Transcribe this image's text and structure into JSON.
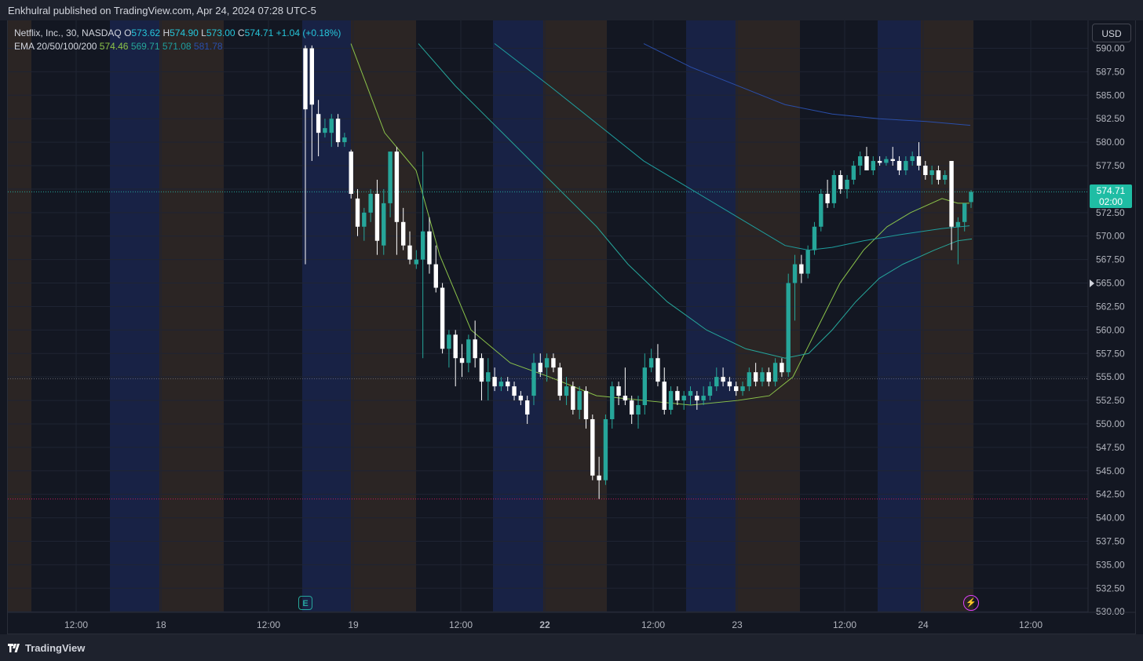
{
  "header": {
    "published_text": "Enkhulral published on TradingView.com, Apr 24, 2024 07:28 UTC-5"
  },
  "legend": {
    "symbol": "Netflix, Inc., 30, NASDAQ",
    "ohlc": {
      "o_label": "O",
      "o": "573.62",
      "h_label": "H",
      "h": "574.90",
      "l_label": "L",
      "l": "573.00",
      "c_label": "C",
      "c": "574.71",
      "change": "+1.04 (+0.18%)"
    },
    "ema_label": "EMA 20/50/100/200",
    "ema_values": [
      "574.46",
      "569.71",
      "571.08",
      "581.78"
    ]
  },
  "currency_button": "USD",
  "last_price": {
    "price": "574.71",
    "countdown": "02:00"
  },
  "footer": {
    "brand": "TradingView"
  },
  "icons": {
    "earnings": "E",
    "bolt": "⚡"
  },
  "colors": {
    "up": "#26a69a",
    "down": "#ffffff",
    "ema20": "#8bc34a",
    "ema50": "#26a69a",
    "ema100": "#1e9e9e",
    "ema200": "#2a4eaa",
    "asia": "#2b2524",
    "overnight": "#182245"
  },
  "chart_data": {
    "type": "candlestick",
    "symbol": "NFLX",
    "interval": "30",
    "y_ticks": [
      590,
      587.5,
      585,
      582.5,
      580,
      577.5,
      575,
      572.5,
      570,
      567.5,
      565,
      562.5,
      560,
      557.5,
      555,
      552.5,
      550,
      547.5,
      545,
      542.5,
      540,
      537.5,
      535,
      532.5,
      530
    ],
    "ylim": [
      530,
      590.3
    ],
    "x_ticks": [
      "12:00",
      "18",
      "12:00",
      "19",
      "12:00",
      "22",
      "12:00",
      "23",
      "12:00",
      "24",
      "12:00"
    ],
    "horizontal_lines": [
      574.71,
      554.8,
      542.0
    ],
    "candles": [
      {
        "o": 590.0,
        "h": 590.3,
        "l": 567.0,
        "c": 583.5
      },
      {
        "o": 590.0,
        "h": 590.3,
        "l": 578.0,
        "c": 584.0
      },
      {
        "o": 583.0,
        "h": 584.5,
        "l": 578.5,
        "c": 581.0
      },
      {
        "o": 581.0,
        "h": 582.5,
        "l": 580.5,
        "c": 581.5
      },
      {
        "o": 581.0,
        "h": 583.0,
        "l": 579.5,
        "c": 582.5
      },
      {
        "o": 582.5,
        "h": 583.0,
        "l": 579.5,
        "c": 580.0
      },
      {
        "o": 580.0,
        "h": 581.0,
        "l": 579.5,
        "c": 580.5
      },
      {
        "o": 579.0,
        "h": 579.2,
        "l": 574.0,
        "c": 574.5
      },
      {
        "o": 574.0,
        "h": 575.0,
        "l": 570.0,
        "c": 571.0
      },
      {
        "o": 571.0,
        "h": 573.0,
        "l": 569.5,
        "c": 572.5
      },
      {
        "o": 572.5,
        "h": 575.0,
        "l": 571.5,
        "c": 574.5
      },
      {
        "o": 574.5,
        "h": 576.0,
        "l": 568.0,
        "c": 569.5
      },
      {
        "o": 569.0,
        "h": 575.0,
        "l": 568.0,
        "c": 573.5
      },
      {
        "o": 573.5,
        "h": 579.0,
        "l": 572.0,
        "c": 579.0
      },
      {
        "o": 579.0,
        "h": 579.5,
        "l": 568.0,
        "c": 571.5
      },
      {
        "o": 571.5,
        "h": 573.0,
        "l": 568.5,
        "c": 569.0
      },
      {
        "o": 569.0,
        "h": 570.5,
        "l": 567.0,
        "c": 567.5
      },
      {
        "o": 567.0,
        "h": 568.5,
        "l": 566.5,
        "c": 567.5
      },
      {
        "o": 567.5,
        "h": 579.0,
        "l": 557.0,
        "c": 570.5
      },
      {
        "o": 570.5,
        "h": 572.0,
        "l": 566.0,
        "c": 567.0
      },
      {
        "o": 567.0,
        "h": 569.0,
        "l": 564.0,
        "c": 564.5
      },
      {
        "o": 564.5,
        "h": 565.0,
        "l": 557.5,
        "c": 558.0
      },
      {
        "o": 558.0,
        "h": 560.0,
        "l": 556.0,
        "c": 559.5
      },
      {
        "o": 559.5,
        "h": 560.0,
        "l": 554.0,
        "c": 557.0
      },
      {
        "o": 557.0,
        "h": 558.5,
        "l": 555.0,
        "c": 556.5
      },
      {
        "o": 556.5,
        "h": 559.5,
        "l": 555.5,
        "c": 559.0
      },
      {
        "o": 559.0,
        "h": 561.0,
        "l": 556.0,
        "c": 557.0
      },
      {
        "o": 557.0,
        "h": 557.5,
        "l": 552.5,
        "c": 554.5
      },
      {
        "o": 554.5,
        "h": 557.0,
        "l": 552.5,
        "c": 555.5
      },
      {
        "o": 555.0,
        "h": 556.0,
        "l": 553.5,
        "c": 554.0
      },
      {
        "o": 554.0,
        "h": 555.0,
        "l": 553.5,
        "c": 554.5
      },
      {
        "o": 554.5,
        "h": 555.0,
        "l": 553.5,
        "c": 554.0
      },
      {
        "o": 554.0,
        "h": 554.5,
        "l": 552.5,
        "c": 553.0
      },
      {
        "o": 553.0,
        "h": 553.5,
        "l": 552.0,
        "c": 552.5
      },
      {
        "o": 552.5,
        "h": 553.0,
        "l": 550.0,
        "c": 551.0
      },
      {
        "o": 553.0,
        "h": 557.5,
        "l": 552.0,
        "c": 556.5
      },
      {
        "o": 556.5,
        "h": 557.5,
        "l": 555.0,
        "c": 555.5
      },
      {
        "o": 556.0,
        "h": 557.5,
        "l": 554.5,
        "c": 557.0
      },
      {
        "o": 557.0,
        "h": 557.5,
        "l": 555.5,
        "c": 556.0
      },
      {
        "o": 556.0,
        "h": 556.5,
        "l": 552.5,
        "c": 553.0
      },
      {
        "o": 553.0,
        "h": 555.0,
        "l": 552.0,
        "c": 554.0
      },
      {
        "o": 554.0,
        "h": 554.5,
        "l": 551.0,
        "c": 551.5
      },
      {
        "o": 551.5,
        "h": 554.0,
        "l": 550.5,
        "c": 553.5
      },
      {
        "o": 553.5,
        "h": 554.0,
        "l": 549.5,
        "c": 550.5
      },
      {
        "o": 550.5,
        "h": 551.0,
        "l": 544.0,
        "c": 544.5
      },
      {
        "o": 544.5,
        "h": 546.5,
        "l": 542.0,
        "c": 544.0
      },
      {
        "o": 544.0,
        "h": 551.0,
        "l": 543.5,
        "c": 550.5
      },
      {
        "o": 550.5,
        "h": 554.5,
        "l": 549.5,
        "c": 554.0
      },
      {
        "o": 554.0,
        "h": 554.5,
        "l": 552.0,
        "c": 553.0
      },
      {
        "o": 553.0,
        "h": 556.0,
        "l": 552.0,
        "c": 552.5
      },
      {
        "o": 552.5,
        "h": 553.0,
        "l": 550.0,
        "c": 551.0
      },
      {
        "o": 551.0,
        "h": 553.0,
        "l": 549.5,
        "c": 552.0
      },
      {
        "o": 552.0,
        "h": 557.5,
        "l": 551.0,
        "c": 556.0
      },
      {
        "o": 556.0,
        "h": 558.0,
        "l": 555.5,
        "c": 557.0
      },
      {
        "o": 557.0,
        "h": 558.5,
        "l": 554.0,
        "c": 554.5
      },
      {
        "o": 554.5,
        "h": 556.0,
        "l": 551.0,
        "c": 551.5
      },
      {
        "o": 551.5,
        "h": 554.0,
        "l": 551.0,
        "c": 553.5
      },
      {
        "o": 553.5,
        "h": 554.0,
        "l": 552.0,
        "c": 552.5
      },
      {
        "o": 552.5,
        "h": 553.5,
        "l": 551.5,
        "c": 553.0
      },
      {
        "o": 553.0,
        "h": 554.0,
        "l": 552.0,
        "c": 553.5
      },
      {
        "o": 553.0,
        "h": 553.5,
        "l": 551.5,
        "c": 552.5
      },
      {
        "o": 552.5,
        "h": 554.0,
        "l": 552.0,
        "c": 553.0
      },
      {
        "o": 553.0,
        "h": 554.5,
        "l": 552.5,
        "c": 554.0
      },
      {
        "o": 554.0,
        "h": 556.0,
        "l": 553.5,
        "c": 555.0
      },
      {
        "o": 555.0,
        "h": 556.0,
        "l": 554.0,
        "c": 554.5
      },
      {
        "o": 554.5,
        "h": 555.0,
        "l": 553.5,
        "c": 554.0
      },
      {
        "o": 554.0,
        "h": 554.5,
        "l": 553.0,
        "c": 553.5
      },
      {
        "o": 553.5,
        "h": 554.5,
        "l": 553.0,
        "c": 554.0
      },
      {
        "o": 554.0,
        "h": 556.0,
        "l": 553.5,
        "c": 555.5
      },
      {
        "o": 555.5,
        "h": 556.5,
        "l": 554.0,
        "c": 554.5
      },
      {
        "o": 554.5,
        "h": 556.0,
        "l": 554.0,
        "c": 555.5
      },
      {
        "o": 555.5,
        "h": 556.0,
        "l": 554.0,
        "c": 554.5
      },
      {
        "o": 554.5,
        "h": 557.0,
        "l": 554.0,
        "c": 556.5
      },
      {
        "o": 556.5,
        "h": 557.0,
        "l": 555.0,
        "c": 555.5
      },
      {
        "o": 555.5,
        "h": 566.0,
        "l": 555.0,
        "c": 565.0
      },
      {
        "o": 565.0,
        "h": 568.0,
        "l": 561.0,
        "c": 567.0
      },
      {
        "o": 567.0,
        "h": 568.0,
        "l": 565.0,
        "c": 566.0
      },
      {
        "o": 566.0,
        "h": 569.0,
        "l": 565.5,
        "c": 568.5
      },
      {
        "o": 568.5,
        "h": 571.5,
        "l": 568.0,
        "c": 571.0
      },
      {
        "o": 571.0,
        "h": 575.0,
        "l": 570.5,
        "c": 574.5
      },
      {
        "o": 574.5,
        "h": 576.0,
        "l": 573.0,
        "c": 573.5
      },
      {
        "o": 573.5,
        "h": 577.0,
        "l": 573.0,
        "c": 576.5
      },
      {
        "o": 576.5,
        "h": 577.0,
        "l": 574.5,
        "c": 575.0
      },
      {
        "o": 575.0,
        "h": 576.5,
        "l": 574.0,
        "c": 576.0
      },
      {
        "o": 576.0,
        "h": 578.0,
        "l": 575.5,
        "c": 577.5
      },
      {
        "o": 577.5,
        "h": 579.0,
        "l": 576.5,
        "c": 578.5
      },
      {
        "o": 578.5,
        "h": 579.5,
        "l": 577.0,
        "c": 577.0
      },
      {
        "o": 577.0,
        "h": 578.5,
        "l": 576.5,
        "c": 578.0
      },
      {
        "o": 578.0,
        "h": 578.5,
        "l": 577.5,
        "c": 577.8
      },
      {
        "o": 577.8,
        "h": 578.5,
        "l": 577.5,
        "c": 578.2
      },
      {
        "o": 578.2,
        "h": 579.5,
        "l": 577.5,
        "c": 578.0
      },
      {
        "o": 578.0,
        "h": 578.5,
        "l": 576.5,
        "c": 577.0
      },
      {
        "o": 577.0,
        "h": 578.5,
        "l": 576.5,
        "c": 578.0
      },
      {
        "o": 578.0,
        "h": 579.0,
        "l": 577.5,
        "c": 578.5
      },
      {
        "o": 578.5,
        "h": 580.0,
        "l": 577.0,
        "c": 577.5
      },
      {
        "o": 577.5,
        "h": 578.0,
        "l": 576.0,
        "c": 576.5
      },
      {
        "o": 576.5,
        "h": 577.5,
        "l": 575.5,
        "c": 577.0
      },
      {
        "o": 577.0,
        "h": 577.5,
        "l": 575.5,
        "c": 576.0
      },
      {
        "o": 576.0,
        "h": 577.0,
        "l": 575.5,
        "c": 576.5
      },
      {
        "o": 578.0,
        "h": 578.0,
        "l": 568.5,
        "c": 571.0
      },
      {
        "o": 571.0,
        "h": 572.0,
        "l": 567.0,
        "c": 571.5
      },
      {
        "o": 571.5,
        "h": 573.5,
        "l": 570.5,
        "c": 573.5
      },
      {
        "o": 573.62,
        "h": 574.9,
        "l": 573.0,
        "c": 574.71
      }
    ],
    "ema_series": [
      {
        "name": "EMA 20",
        "color": "#8bc34a",
        "points": [
          [
            447,
            590.5
          ],
          [
            490,
            581
          ],
          [
            530,
            577
          ],
          [
            560,
            568
          ],
          [
            600,
            560
          ],
          [
            650,
            556.5
          ],
          [
            700,
            555
          ],
          [
            760,
            553
          ],
          [
            820,
            552.5
          ],
          [
            880,
            552
          ],
          [
            940,
            552.5
          ],
          [
            980,
            553
          ],
          [
            1010,
            555
          ],
          [
            1040,
            560
          ],
          [
            1070,
            565
          ],
          [
            1100,
            568.5
          ],
          [
            1130,
            571
          ],
          [
            1160,
            572.5
          ],
          [
            1200,
            574
          ],
          [
            1220,
            573.5
          ],
          [
            1235,
            573.5
          ]
        ]
      },
      {
        "name": "EMA 50",
        "color": "#26a69a",
        "points": [
          [
            533,
            590.5
          ],
          [
            580,
            586
          ],
          [
            640,
            581
          ],
          [
            700,
            576
          ],
          [
            760,
            571
          ],
          [
            800,
            567
          ],
          [
            850,
            563
          ],
          [
            900,
            560
          ],
          [
            950,
            558
          ],
          [
            1000,
            557
          ],
          [
            1030,
            557.5
          ],
          [
            1060,
            560
          ],
          [
            1090,
            563
          ],
          [
            1120,
            565.5
          ],
          [
            1150,
            567
          ],
          [
            1190,
            568.5
          ],
          [
            1220,
            569.5
          ],
          [
            1238,
            569.7
          ]
        ]
      },
      {
        "name": "EMA 100",
        "color": "#1e9e9e",
        "points": [
          [
            630,
            590.5
          ],
          [
            700,
            586
          ],
          [
            760,
            582
          ],
          [
            820,
            578
          ],
          [
            880,
            575
          ],
          [
            940,
            572
          ],
          [
            1000,
            569
          ],
          [
            1030,
            568.5
          ],
          [
            1060,
            568.8
          ],
          [
            1100,
            569.5
          ],
          [
            1150,
            570.2
          ],
          [
            1200,
            570.8
          ],
          [
            1235,
            571.1
          ]
        ]
      },
      {
        "name": "EMA 200",
        "color": "#2a4eaa",
        "points": [
          [
            820,
            590.5
          ],
          [
            880,
            588
          ],
          [
            940,
            586
          ],
          [
            1000,
            584
          ],
          [
            1060,
            583
          ],
          [
            1120,
            582.5
          ],
          [
            1180,
            582.2
          ],
          [
            1236,
            581.8
          ]
        ]
      }
    ]
  }
}
